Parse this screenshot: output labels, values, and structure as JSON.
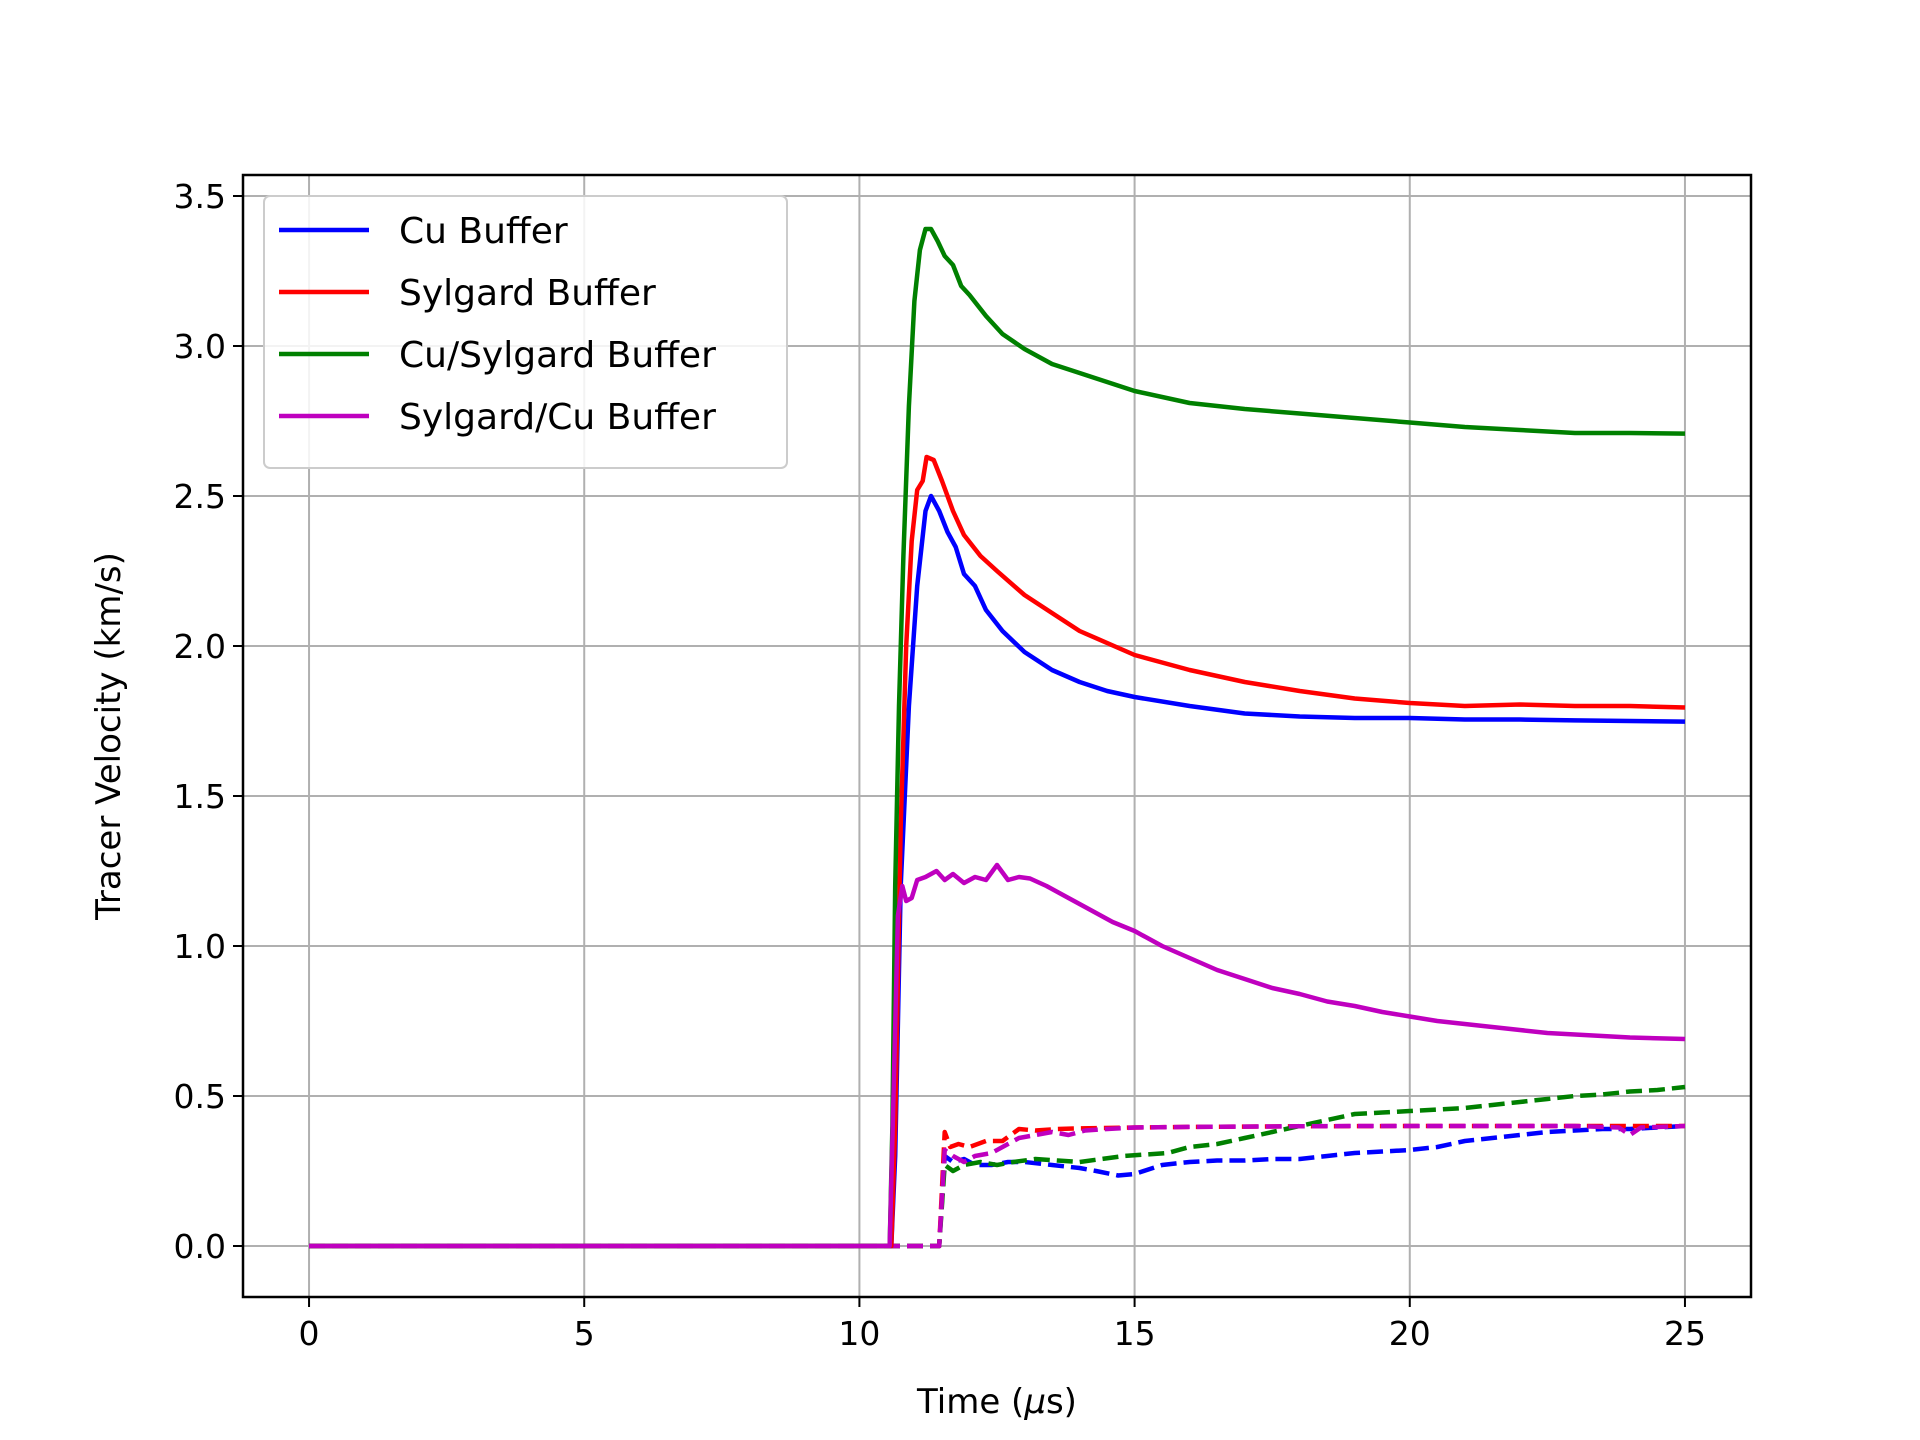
{
  "chart_data": {
    "type": "line",
    "title": "",
    "xlabel_prefix": "Time (",
    "xlabel_mu": "μ",
    "xlabel_suffix": "s)",
    "ylabel": "Tracer Velocity (km/s)",
    "xlim": [
      -1.2,
      26.2
    ],
    "ylim": [
      -0.17,
      3.57
    ],
    "xticks": [
      0,
      5,
      10,
      15,
      20,
      25
    ],
    "xtick_labels": [
      "0",
      "5",
      "10",
      "15",
      "20",
      "25"
    ],
    "yticks": [
      0.0,
      0.5,
      1.0,
      1.5,
      2.0,
      2.5,
      3.0,
      3.5
    ],
    "ytick_labels": [
      "0.0",
      "0.5",
      "1.0",
      "1.5",
      "2.0",
      "2.5",
      "3.0",
      "3.5"
    ],
    "grid": true,
    "legend_position": "top-left",
    "series": [
      {
        "name": "Cu Buffer",
        "color": "#0000ff",
        "style": "solid",
        "points": [
          [
            0,
            0
          ],
          [
            10.58,
            0
          ],
          [
            10.65,
            0.3
          ],
          [
            10.75,
            1.2
          ],
          [
            10.9,
            1.8
          ],
          [
            11.05,
            2.2
          ],
          [
            11.2,
            2.45
          ],
          [
            11.3,
            2.5
          ],
          [
            11.45,
            2.45
          ],
          [
            11.6,
            2.38
          ],
          [
            11.75,
            2.33
          ],
          [
            11.9,
            2.24
          ],
          [
            12.1,
            2.2
          ],
          [
            12.3,
            2.12
          ],
          [
            12.6,
            2.05
          ],
          [
            13,
            1.98
          ],
          [
            13.5,
            1.92
          ],
          [
            14,
            1.88
          ],
          [
            14.5,
            1.85
          ],
          [
            15,
            1.83
          ],
          [
            16,
            1.8
          ],
          [
            17,
            1.775
          ],
          [
            18,
            1.765
          ],
          [
            19,
            1.76
          ],
          [
            20,
            1.76
          ],
          [
            21,
            1.755
          ],
          [
            22,
            1.755
          ],
          [
            23,
            1.752
          ],
          [
            24,
            1.75
          ],
          [
            25,
            1.748
          ]
        ]
      },
      {
        "name": "Sylgard Buffer",
        "color": "#ff0000",
        "style": "solid",
        "points": [
          [
            0,
            0
          ],
          [
            10.58,
            0
          ],
          [
            10.65,
            0.4
          ],
          [
            10.75,
            1.4
          ],
          [
            10.85,
            2.0
          ],
          [
            10.95,
            2.35
          ],
          [
            11.05,
            2.52
          ],
          [
            11.15,
            2.55
          ],
          [
            11.22,
            2.63
          ],
          [
            11.35,
            2.62
          ],
          [
            11.5,
            2.55
          ],
          [
            11.7,
            2.45
          ],
          [
            11.9,
            2.37
          ],
          [
            12.2,
            2.3
          ],
          [
            12.5,
            2.25
          ],
          [
            13,
            2.17
          ],
          [
            13.5,
            2.11
          ],
          [
            14,
            2.05
          ],
          [
            15,
            1.97
          ],
          [
            16,
            1.92
          ],
          [
            17,
            1.88
          ],
          [
            18,
            1.85
          ],
          [
            19,
            1.825
          ],
          [
            20,
            1.81
          ],
          [
            21,
            1.8
          ],
          [
            22,
            1.805
          ],
          [
            23,
            1.8
          ],
          [
            24,
            1.8
          ],
          [
            25,
            1.795
          ]
        ]
      },
      {
        "name": "Cu/Sylgard Buffer",
        "color": "#008000",
        "style": "solid",
        "points": [
          [
            0,
            0
          ],
          [
            10.55,
            0
          ],
          [
            10.6,
            0.4
          ],
          [
            10.65,
            1.2
          ],
          [
            10.72,
            1.8
          ],
          [
            10.8,
            2.3
          ],
          [
            10.9,
            2.8
          ],
          [
            11.0,
            3.15
          ],
          [
            11.1,
            3.32
          ],
          [
            11.2,
            3.39
          ],
          [
            11.3,
            3.39
          ],
          [
            11.42,
            3.35
          ],
          [
            11.55,
            3.3
          ],
          [
            11.7,
            3.27
          ],
          [
            11.85,
            3.2
          ],
          [
            12.0,
            3.17
          ],
          [
            12.3,
            3.1
          ],
          [
            12.6,
            3.04
          ],
          [
            13,
            2.99
          ],
          [
            13.5,
            2.94
          ],
          [
            14,
            2.91
          ],
          [
            14.5,
            2.88
          ],
          [
            15,
            2.85
          ],
          [
            16,
            2.81
          ],
          [
            17,
            2.79
          ],
          [
            18,
            2.775
          ],
          [
            19,
            2.76
          ],
          [
            20,
            2.745
          ],
          [
            21,
            2.73
          ],
          [
            22,
            2.72
          ],
          [
            23,
            2.71
          ],
          [
            24,
            2.71
          ],
          [
            25,
            2.708
          ]
        ]
      },
      {
        "name": "Sylgard/Cu Buffer",
        "color": "#bf00bf",
        "style": "solid",
        "points": [
          [
            0,
            0
          ],
          [
            10.55,
            0
          ],
          [
            10.62,
            0.5
          ],
          [
            10.7,
            1.1
          ],
          [
            10.78,
            1.2
          ],
          [
            10.85,
            1.15
          ],
          [
            10.95,
            1.16
          ],
          [
            11.05,
            1.22
          ],
          [
            11.2,
            1.23
          ],
          [
            11.4,
            1.25
          ],
          [
            11.55,
            1.22
          ],
          [
            11.7,
            1.24
          ],
          [
            11.9,
            1.21
          ],
          [
            12.1,
            1.23
          ],
          [
            12.3,
            1.22
          ],
          [
            12.5,
            1.27
          ],
          [
            12.7,
            1.22
          ],
          [
            12.9,
            1.23
          ],
          [
            13.1,
            1.225
          ],
          [
            13.4,
            1.2
          ],
          [
            13.8,
            1.16
          ],
          [
            14.2,
            1.12
          ],
          [
            14.6,
            1.08
          ],
          [
            15,
            1.05
          ],
          [
            15.5,
            1.0
          ],
          [
            16,
            0.96
          ],
          [
            16.5,
            0.92
          ],
          [
            17,
            0.89
          ],
          [
            17.5,
            0.86
          ],
          [
            18,
            0.84
          ],
          [
            18.5,
            0.815
          ],
          [
            19,
            0.8
          ],
          [
            19.5,
            0.78
          ],
          [
            20,
            0.765
          ],
          [
            20.5,
            0.75
          ],
          [
            21,
            0.74
          ],
          [
            21.5,
            0.73
          ],
          [
            22,
            0.72
          ],
          [
            22.5,
            0.71
          ],
          [
            23,
            0.705
          ],
          [
            24,
            0.695
          ],
          [
            25,
            0.69
          ]
        ]
      },
      {
        "name": "",
        "color": "#0000ff",
        "style": "dashed",
        "points": [
          [
            0,
            0
          ],
          [
            11.45,
            0
          ],
          [
            11.55,
            0.3
          ],
          [
            11.7,
            0.28
          ],
          [
            11.9,
            0.29
          ],
          [
            12.1,
            0.27
          ],
          [
            12.4,
            0.27
          ],
          [
            12.7,
            0.28
          ],
          [
            13,
            0.28
          ],
          [
            13.5,
            0.27
          ],
          [
            14,
            0.26
          ],
          [
            14.3,
            0.25
          ],
          [
            14.7,
            0.235
          ],
          [
            15,
            0.24
          ],
          [
            15.5,
            0.27
          ],
          [
            16,
            0.28
          ],
          [
            16.5,
            0.285
          ],
          [
            17,
            0.285
          ],
          [
            17.5,
            0.29
          ],
          [
            18,
            0.29
          ],
          [
            18.5,
            0.3
          ],
          [
            19,
            0.31
          ],
          [
            19.5,
            0.315
          ],
          [
            20,
            0.32
          ],
          [
            20.5,
            0.33
          ],
          [
            21,
            0.35
          ],
          [
            21.5,
            0.36
          ],
          [
            22,
            0.37
          ],
          [
            22.5,
            0.38
          ],
          [
            23,
            0.385
          ],
          [
            23.5,
            0.39
          ],
          [
            24,
            0.39
          ],
          [
            24.5,
            0.395
          ],
          [
            25,
            0.4
          ]
        ]
      },
      {
        "name": "",
        "color": "#ff0000",
        "style": "dashed",
        "points": [
          [
            0,
            0
          ],
          [
            11.45,
            0
          ],
          [
            11.55,
            0.38
          ],
          [
            11.65,
            0.33
          ],
          [
            11.8,
            0.34
          ],
          [
            12,
            0.33
          ],
          [
            12.3,
            0.35
          ],
          [
            12.6,
            0.35
          ],
          [
            12.9,
            0.39
          ],
          [
            13.2,
            0.385
          ],
          [
            13.6,
            0.39
          ],
          [
            14,
            0.392
          ],
          [
            15,
            0.395
          ],
          [
            16,
            0.397
          ],
          [
            17,
            0.398
          ],
          [
            18,
            0.399
          ],
          [
            20,
            0.4
          ],
          [
            22,
            0.4
          ],
          [
            25,
            0.4
          ]
        ]
      },
      {
        "name": "",
        "color": "#008000",
        "style": "dashed",
        "points": [
          [
            0,
            0
          ],
          [
            11.45,
            0
          ],
          [
            11.55,
            0.27
          ],
          [
            11.7,
            0.25
          ],
          [
            11.9,
            0.27
          ],
          [
            12.2,
            0.28
          ],
          [
            12.5,
            0.27
          ],
          [
            12.8,
            0.28
          ],
          [
            13.2,
            0.29
          ],
          [
            13.6,
            0.285
          ],
          [
            14,
            0.28
          ],
          [
            14.4,
            0.29
          ],
          [
            14.8,
            0.3
          ],
          [
            15.2,
            0.305
          ],
          [
            15.6,
            0.31
          ],
          [
            16,
            0.33
          ],
          [
            16.5,
            0.34
          ],
          [
            17,
            0.36
          ],
          [
            17.5,
            0.38
          ],
          [
            18,
            0.4
          ],
          [
            18.5,
            0.42
          ],
          [
            19,
            0.44
          ],
          [
            19.5,
            0.445
          ],
          [
            20,
            0.45
          ],
          [
            20.5,
            0.455
          ],
          [
            21,
            0.46
          ],
          [
            21.5,
            0.47
          ],
          [
            22,
            0.48
          ],
          [
            22.5,
            0.49
          ],
          [
            23,
            0.5
          ],
          [
            23.5,
            0.505
          ],
          [
            24,
            0.515
          ],
          [
            24.5,
            0.52
          ],
          [
            25,
            0.53
          ]
        ]
      },
      {
        "name": "",
        "color": "#bf00bf",
        "style": "dashed",
        "points": [
          [
            0,
            0
          ],
          [
            11.45,
            0
          ],
          [
            11.55,
            0.32
          ],
          [
            11.7,
            0.3
          ],
          [
            11.9,
            0.28
          ],
          [
            12.1,
            0.3
          ],
          [
            12.4,
            0.31
          ],
          [
            12.6,
            0.33
          ],
          [
            12.9,
            0.36
          ],
          [
            13.2,
            0.37
          ],
          [
            13.5,
            0.38
          ],
          [
            13.8,
            0.37
          ],
          [
            14.1,
            0.385
          ],
          [
            14.5,
            0.39
          ],
          [
            15,
            0.395
          ],
          [
            16,
            0.397
          ],
          [
            17,
            0.398
          ],
          [
            18,
            0.399
          ],
          [
            19,
            0.4
          ],
          [
            20,
            0.4
          ],
          [
            21,
            0.4
          ],
          [
            22,
            0.4
          ],
          [
            23,
            0.4
          ],
          [
            23.8,
            0.395
          ],
          [
            24,
            0.37
          ],
          [
            24.2,
            0.395
          ],
          [
            25,
            0.4
          ]
        ]
      }
    ]
  }
}
